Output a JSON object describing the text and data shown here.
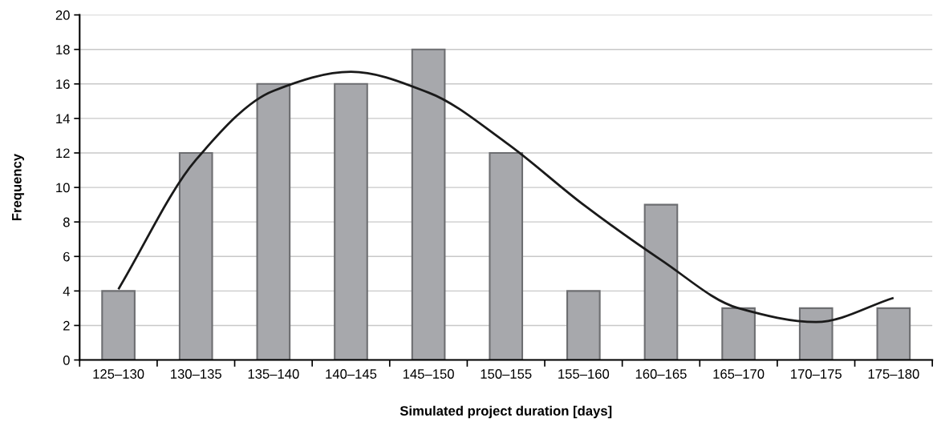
{
  "chart_data": {
    "type": "bar",
    "xlabel": "Simulated project duration [days]",
    "ylabel": "Frequency",
    "categories": [
      "125–130",
      "130–135",
      "135–140",
      "140–145",
      "145–150",
      "150–155",
      "155–160",
      "160–165",
      "165–170",
      "170–175",
      "175–180"
    ],
    "series": [
      {
        "color": "#a7a8ac",
        "values": [
          4,
          12,
          16,
          16,
          18,
          12,
          4,
          9,
          3,
          3,
          3
        ]
      },
      {
        "type": "line",
        "color": "#1a1a1a",
        "values": [
          4.1,
          11.6,
          15.6,
          16.7,
          15.5,
          12.6,
          9.0,
          5.8,
          3.0,
          2.2,
          3.6
        ]
      }
    ],
    "ylim": [
      0,
      20
    ],
    "yticks": [
      0,
      2,
      4,
      6,
      8,
      10,
      12,
      14,
      16,
      18,
      20
    ],
    "grid": "y",
    "marker": "none",
    "line_style": "solid"
  }
}
